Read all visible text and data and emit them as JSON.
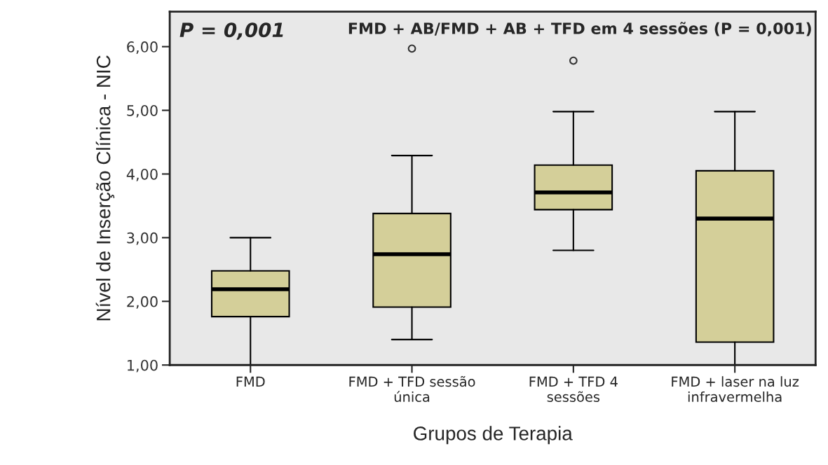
{
  "chart_data": {
    "type": "box",
    "xlabel": "Grupos de Terapia",
    "ylabel": "Nível de Inserção Clínica - NIC",
    "categories": [
      "FMD",
      "FMD + TFD sessão\núnica",
      "FMD + TFD 4\nsessões",
      "FMD + laser na luz\ninfravermelha"
    ],
    "color": "#d4cf99",
    "boxes": [
      {
        "low": 1.0,
        "q1": 1.76,
        "median": 2.19,
        "q3": 2.48,
        "high": 3.0
      },
      {
        "low": 1.4,
        "q1": 1.91,
        "median": 2.74,
        "q3": 3.38,
        "high": 4.29,
        "outliers": [
          5.97
        ]
      },
      {
        "low": 2.8,
        "q1": 3.44,
        "median": 3.71,
        "q3": 4.14,
        "high": 4.98,
        "outliers": [
          5.78
        ]
      },
      {
        "low": 1.0,
        "q1": 1.36,
        "median": 3.3,
        "q3": 4.05,
        "high": 4.98
      }
    ],
    "ylim": [
      1.0,
      6.55
    ],
    "yticks": [
      {
        "value": 1,
        "label": "1,00"
      },
      {
        "value": 2,
        "label": "2,00"
      },
      {
        "value": 3,
        "label": "3,00"
      },
      {
        "value": 4,
        "label": "4,00"
      },
      {
        "value": 5,
        "label": "5,00"
      },
      {
        "value": 6,
        "label": "6,00"
      }
    ],
    "annotations": [
      "P = 0,001",
      "FMD + AB/FMD + AB + TFD em 4 sessões (P = 0,001)"
    ],
    "grid": false,
    "legend": false
  }
}
